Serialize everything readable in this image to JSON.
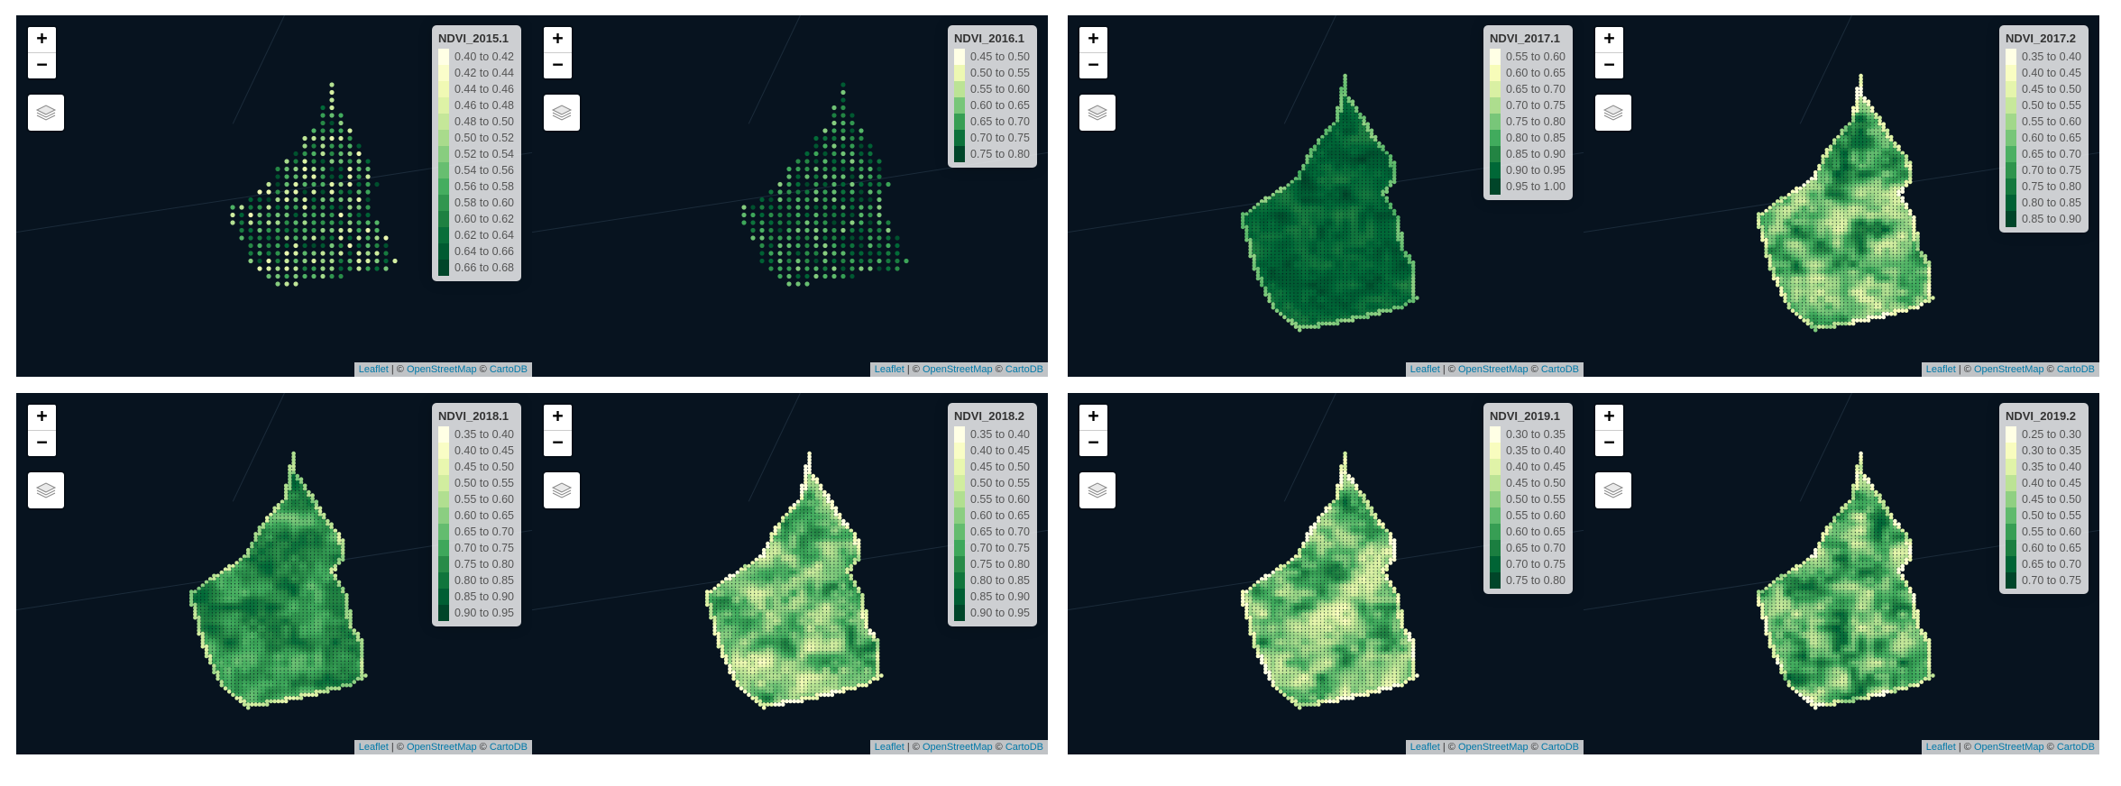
{
  "common": {
    "zoom_in": "+",
    "zoom_out": "−",
    "attribution": {
      "leaflet": "Leaflet",
      "sep": " | © ",
      "osm": "OpenStreetMap",
      "mid": " © ",
      "carto": "CartoDB"
    }
  },
  "colors": {
    "background": "#07131f",
    "ramp_light": "#ffffe5",
    "ramp_dark": "#004529"
  },
  "maps": [
    {
      "layer": "NDVI_2015.1",
      "shape": "wedge",
      "render": "dots",
      "legend": [
        "0.40 to 0.42",
        "0.42 to 0.44",
        "0.44 to 0.46",
        "0.46 to 0.48",
        "0.48 to 0.50",
        "0.50 to 0.52",
        "0.52 to 0.54",
        "0.54 to 0.56",
        "0.56 to 0.58",
        "0.58 to 0.60",
        "0.60 to 0.62",
        "0.62 to 0.64",
        "0.64 to 0.66",
        "0.66 to 0.68"
      ]
    },
    {
      "layer": "NDVI_2016.1",
      "shape": "wedge",
      "render": "dots-dark",
      "legend": [
        "0.45 to 0.50",
        "0.50 to 0.55",
        "0.55 to 0.60",
        "0.60 to 0.65",
        "0.65 to 0.70",
        "0.70 to 0.75",
        "0.75 to 0.80"
      ]
    },
    {
      "layer": "NDVI_2017.1",
      "shape": "field",
      "render": "dense-dark",
      "legend": [
        "0.55 to 0.60",
        "0.60 to 0.65",
        "0.65 to 0.70",
        "0.70 to 0.75",
        "0.75 to 0.80",
        "0.80 to 0.85",
        "0.85 to 0.90",
        "0.90 to 0.95",
        "0.95 to 1.00"
      ]
    },
    {
      "layer": "NDVI_2017.2",
      "shape": "field",
      "render": "dense-mixed",
      "legend": [
        "0.35 to 0.40",
        "0.40 to 0.45",
        "0.45 to 0.50",
        "0.50 to 0.55",
        "0.55 to 0.60",
        "0.60 to 0.65",
        "0.65 to 0.70",
        "0.70 to 0.75",
        "0.75 to 0.80",
        "0.80 to 0.85",
        "0.85 to 0.90"
      ]
    },
    {
      "layer": "NDVI_2018.1",
      "shape": "field",
      "render": "dense-med",
      "legend": [
        "0.35 to 0.40",
        "0.40 to 0.45",
        "0.45 to 0.50",
        "0.50 to 0.55",
        "0.55 to 0.60",
        "0.60 to 0.65",
        "0.65 to 0.70",
        "0.70 to 0.75",
        "0.75 to 0.80",
        "0.80 to 0.85",
        "0.85 to 0.90",
        "0.90 to 0.95"
      ]
    },
    {
      "layer": "NDVI_2018.2",
      "shape": "field",
      "render": "dense-light",
      "legend": [
        "0.35 to 0.40",
        "0.40 to 0.45",
        "0.45 to 0.50",
        "0.50 to 0.55",
        "0.55 to 0.60",
        "0.60 to 0.65",
        "0.65 to 0.70",
        "0.70 to 0.75",
        "0.75 to 0.80",
        "0.80 to 0.85",
        "0.85 to 0.90",
        "0.90 to 0.95"
      ]
    },
    {
      "layer": "NDVI_2019.1",
      "shape": "field",
      "render": "dense-light",
      "legend": [
        "0.30 to 0.35",
        "0.35 to 0.40",
        "0.40 to 0.45",
        "0.45 to 0.50",
        "0.50 to 0.55",
        "0.55 to 0.60",
        "0.60 to 0.65",
        "0.65 to 0.70",
        "0.70 to 0.75",
        "0.75 to 0.80"
      ]
    },
    {
      "layer": "NDVI_2019.2",
      "shape": "field",
      "render": "dense-mixed",
      "legend": [
        "0.25 to 0.30",
        "0.30 to 0.35",
        "0.35 to 0.40",
        "0.40 to 0.45",
        "0.45 to 0.50",
        "0.50 to 0.55",
        "0.55 to 0.60",
        "0.60 to 0.65",
        "0.65 to 0.70",
        "0.70 to 0.75"
      ]
    }
  ]
}
